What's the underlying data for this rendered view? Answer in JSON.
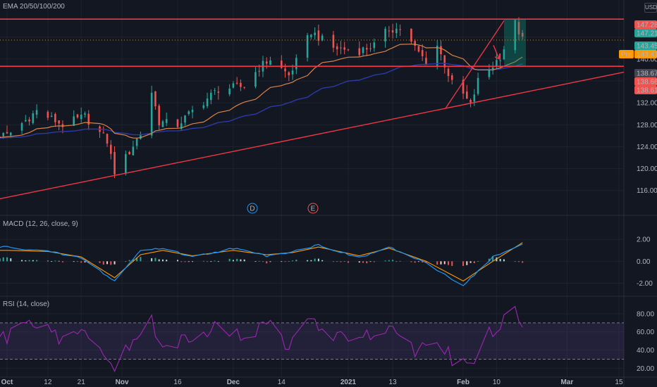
{
  "indicators": {
    "ema_title": "EMA 20/50/100/200",
    "macd_title": "MACD (12, 26, close, 9)",
    "rsi_title": "RSI (14, close)",
    "currency": "USD",
    "dividend_marker": "D",
    "earnings_marker": "E"
  },
  "colors": {
    "background": "#131722",
    "grid": "#1e222d",
    "separator": "#2a2e39",
    "up": "#26a69a",
    "down": "#ef5350",
    "resistance": "#f23645",
    "ema_short": "#d9834a",
    "ema_long": "#2b3aa8",
    "macd_line": "#2196f3",
    "signal_line": "#ff9800",
    "rsi_line": "#9c27b0",
    "rsi_band": "rgba(126,87,194,0.15)",
    "target_box": "rgba(8,153,129,0.35)",
    "pre_market": "#ff9800"
  },
  "chart_data": [
    {
      "type": "candlestick",
      "title": "EMA 20/50/100/200",
      "x_ticks": [
        "Oct",
        "12",
        "21",
        "Nov",
        "16",
        "Dec",
        "14",
        "2021",
        "13",
        "Feb",
        "10",
        "Mar",
        "15"
      ],
      "y_ticks": [
        116.0,
        120.0,
        124.0,
        128.0,
        132.0,
        136.0,
        140.0,
        144.0
      ],
      "y_tick_labels": [
        "116.00",
        "120.00",
        "124.00",
        "128.00",
        "132.00",
        "",
        "140.00",
        ""
      ],
      "ylim": [
        112.5,
        148.2
      ],
      "horizontal_levels": [
        147.28,
        138.67
      ],
      "dotted_level": 143.45,
      "trendline": {
        "from": {
          "date": "Oct",
          "value": 114.5
        },
        "to": {
          "date": "past 15",
          "value": 137.6
        }
      },
      "price_labels": [
        {
          "value": "147.28",
          "kind": "resistance"
        },
        {
          "value": "147.21",
          "kind": "last"
        },
        {
          "value": "143.45",
          "kind": "last"
        },
        {
          "value": "143.41",
          "kind": "pre",
          "prefix": "Pre"
        },
        {
          "value": "138.67",
          "kind": "level"
        },
        {
          "value": "138.66",
          "kind": "resistance"
        },
        {
          "value": "138.61",
          "kind": "resistance"
        }
      ],
      "anchor_closes": [
        {
          "date": "Oct 1",
          "close": 126.0
        },
        {
          "date": "Oct 9",
          "close": 130.5
        },
        {
          "date": "Oct 16",
          "close": 128.0
        },
        {
          "date": "Oct 22",
          "close": 129.5
        },
        {
          "date": "Oct 28",
          "close": 125.0
        },
        {
          "date": "Oct 30",
          "close": 119.5
        },
        {
          "date": "Nov 2",
          "close": 122.0
        },
        {
          "date": "Nov 6",
          "close": 126.5
        },
        {
          "date": "Nov 9",
          "close": 134.0
        },
        {
          "date": "Nov 11",
          "close": 128.5
        },
        {
          "date": "Nov 16",
          "close": 128.0
        },
        {
          "date": "Nov 20",
          "close": 130.5
        },
        {
          "date": "Nov 27",
          "close": 134.5
        },
        {
          "date": "Dec 4",
          "close": 135.0
        },
        {
          "date": "Dec 8",
          "close": 138.5
        },
        {
          "date": "Dec 11",
          "close": 140.0
        },
        {
          "date": "Dec 16",
          "close": 137.0
        },
        {
          "date": "Dec 18",
          "close": 139.5
        },
        {
          "date": "Dec 22",
          "close": 145.0
        },
        {
          "date": "Dec 28",
          "close": 142.0
        },
        {
          "date": "Jan 4",
          "close": 141.5
        },
        {
          "date": "Jan 8",
          "close": 142.5
        },
        {
          "date": "Jan 12",
          "close": 145.5
        },
        {
          "date": "Jan 15",
          "close": 145.5
        },
        {
          "date": "Jan 19",
          "close": 142.0
        },
        {
          "date": "Jan 22",
          "close": 139.5
        },
        {
          "date": "Jan 25",
          "close": 142.5
        },
        {
          "date": "Jan 27",
          "close": 139.0
        },
        {
          "date": "Jan 29",
          "close": 135.5
        },
        {
          "date": "Feb 1",
          "close": 133.5
        },
        {
          "date": "Feb 3",
          "close": 131.5
        },
        {
          "date": "Feb 5",
          "close": 136.0
        },
        {
          "date": "Feb 8",
          "close": 138.0
        },
        {
          "date": "Feb 11",
          "close": 140.5
        },
        {
          "date": "Feb 15",
          "close": 146.5
        },
        {
          "date": "Feb 16",
          "close": 145.0
        },
        {
          "date": "Feb 17",
          "close": 143.45
        }
      ]
    },
    {
      "type": "line",
      "title": "MACD (12, 26, close, 9)",
      "y_ticks": [
        2.0,
        0.0,
        -2.0
      ],
      "y_tick_labels": [
        "2.00",
        "0.00",
        "-2.00"
      ],
      "ylim": [
        -3.0,
        3.3
      ],
      "anchor_macd": [
        {
          "date": "Oct 1",
          "value": 1.3
        },
        {
          "date": "Oct 12",
          "value": 0.9
        },
        {
          "date": "Oct 21",
          "value": 0.3
        },
        {
          "date": "Oct 30",
          "value": -1.8
        },
        {
          "date": "Nov 6",
          "value": 1.0
        },
        {
          "date": "Nov 12",
          "value": 1.2
        },
        {
          "date": "Nov 20",
          "value": 0.4
        },
        {
          "date": "Dec 1",
          "value": 1.2
        },
        {
          "date": "Dec 10",
          "value": 0.5
        },
        {
          "date": "Dec 17",
          "value": 0.9
        },
        {
          "date": "Dec 24",
          "value": 1.5
        },
        {
          "date": "Jan 4",
          "value": 0.3
        },
        {
          "date": "Jan 12",
          "value": 1.3
        },
        {
          "date": "Jan 22",
          "value": -0.2
        },
        {
          "date": "Feb 1",
          "value": -2.2
        },
        {
          "date": "Feb 9",
          "value": 0.4
        },
        {
          "date": "Feb 17",
          "value": 1.5
        }
      ],
      "anchor_signal": [
        {
          "date": "Oct 1",
          "value": 1.0
        },
        {
          "date": "Oct 12",
          "value": 0.9
        },
        {
          "date": "Oct 21",
          "value": 0.4
        },
        {
          "date": "Oct 30",
          "value": -1.5
        },
        {
          "date": "Nov 6",
          "value": 0.6
        },
        {
          "date": "Nov 12",
          "value": 1.0
        },
        {
          "date": "Nov 20",
          "value": 0.5
        },
        {
          "date": "Dec 1",
          "value": 1.0
        },
        {
          "date": "Dec 10",
          "value": 0.6
        },
        {
          "date": "Dec 17",
          "value": 0.8
        },
        {
          "date": "Dec 24",
          "value": 1.3
        },
        {
          "date": "Jan 4",
          "value": 0.5
        },
        {
          "date": "Jan 12",
          "value": 1.2
        },
        {
          "date": "Jan 22",
          "value": 0.0
        },
        {
          "date": "Feb 1",
          "value": -1.8
        },
        {
          "date": "Feb 9",
          "value": 0.0
        },
        {
          "date": "Feb 17",
          "value": 1.7
        }
      ]
    },
    {
      "type": "line",
      "title": "RSI (14, close)",
      "y_ticks": [
        80.0,
        60.0,
        40.0,
        20.0
      ],
      "y_tick_labels": [
        "80.00",
        "60.00",
        "40.00",
        "20.00"
      ],
      "ylim": [
        11.0,
        90.0
      ],
      "bands": [
        70,
        30
      ],
      "anchor_rsi": [
        {
          "date": "Oct 1",
          "value": 55
        },
        {
          "date": "Oct 9",
          "value": 70
        },
        {
          "date": "Oct 16",
          "value": 50
        },
        {
          "date": "Oct 22",
          "value": 58
        },
        {
          "date": "Oct 28",
          "value": 35
        },
        {
          "date": "Oct 30",
          "value": 21
        },
        {
          "date": "Nov 6",
          "value": 60
        },
        {
          "date": "Nov 9",
          "value": 72
        },
        {
          "date": "Nov 12",
          "value": 38
        },
        {
          "date": "Nov 20",
          "value": 57
        },
        {
          "date": "Nov 27",
          "value": 65
        },
        {
          "date": "Dec 4",
          "value": 55
        },
        {
          "date": "Dec 11",
          "value": 68
        },
        {
          "date": "Dec 16",
          "value": 44
        },
        {
          "date": "Dec 22",
          "value": 74
        },
        {
          "date": "Dec 28",
          "value": 52
        },
        {
          "date": "Jan 8",
          "value": 60
        },
        {
          "date": "Jan 12",
          "value": 68
        },
        {
          "date": "Jan 19",
          "value": 40
        },
        {
          "date": "Jan 25",
          "value": 55
        },
        {
          "date": "Jan 29",
          "value": 30
        },
        {
          "date": "Feb 3",
          "value": 22
        },
        {
          "date": "Feb 8",
          "value": 58
        },
        {
          "date": "Feb 15",
          "value": 82
        },
        {
          "date": "Feb 17",
          "value": 60
        }
      ]
    }
  ]
}
